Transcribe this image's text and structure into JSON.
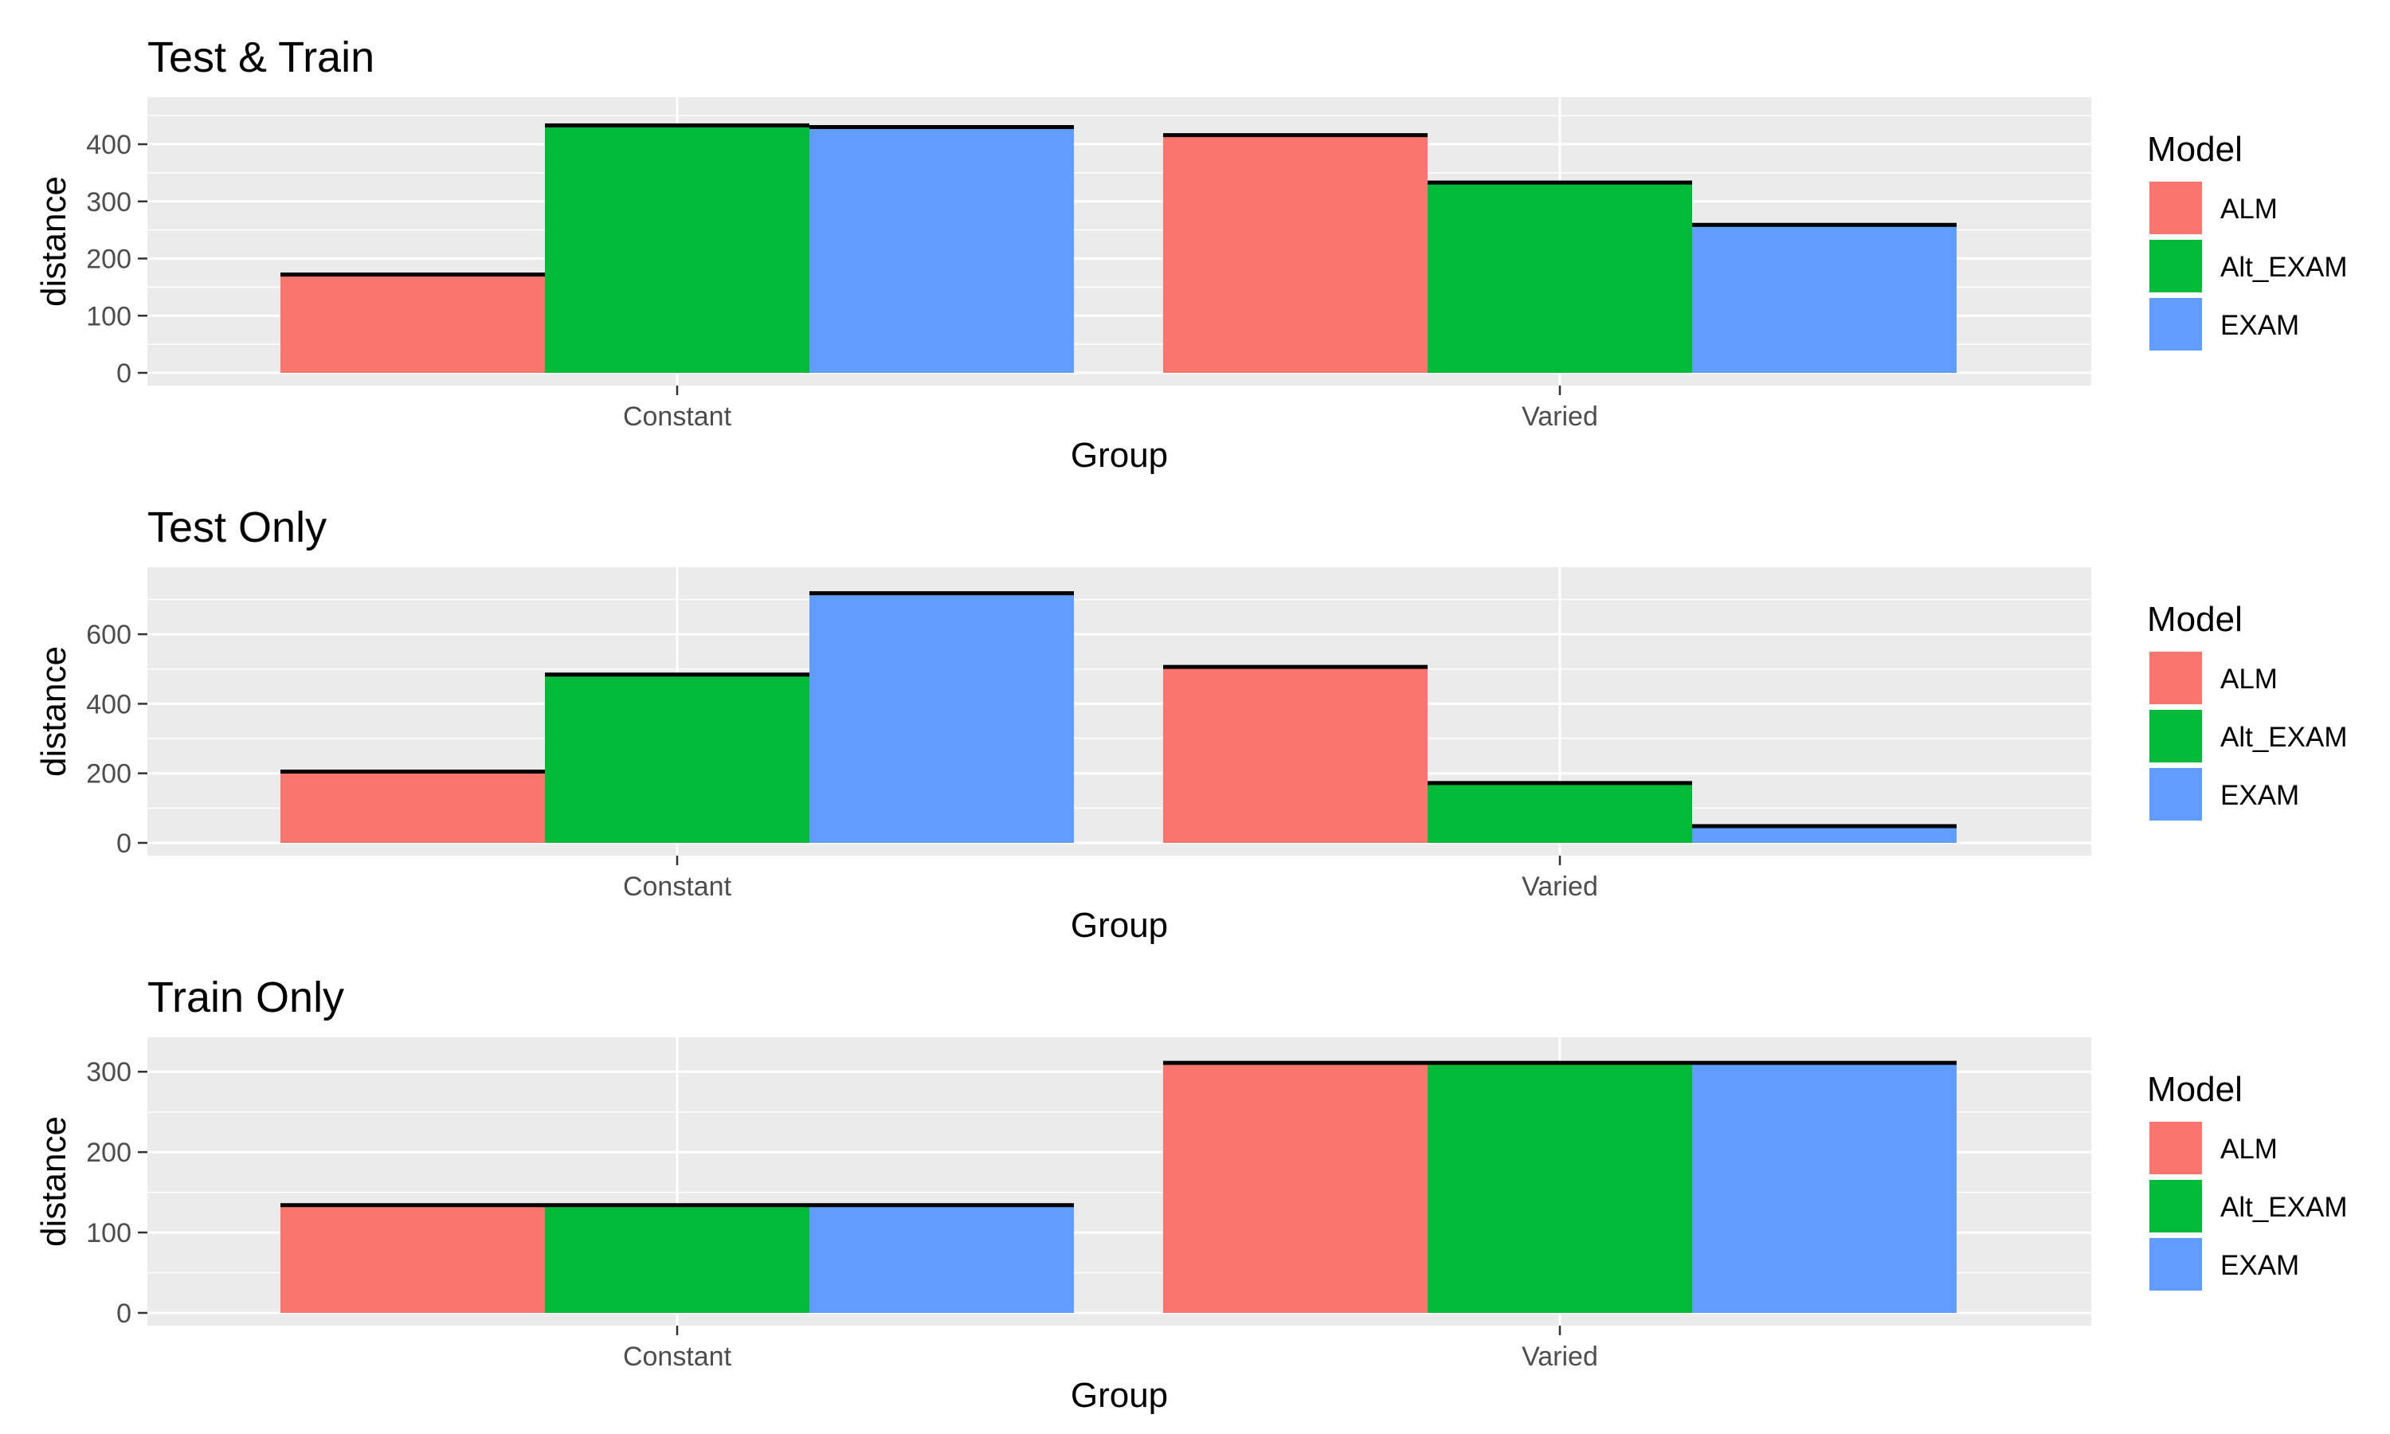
{
  "chart_data": [
    {
      "type": "bar",
      "title": "Test & Train",
      "xlabel": "Group",
      "ylabel": "distance",
      "categories": [
        "Constant",
        "Varied"
      ],
      "series": [
        {
          "name": "ALM",
          "values": [
            172,
            416
          ]
        },
        {
          "name": "Alt_EXAM",
          "values": [
            433,
            333
          ]
        },
        {
          "name": "EXAM",
          "values": [
            430,
            259
          ]
        }
      ],
      "ylim": [
        0,
        460
      ],
      "yticks": [
        0,
        100,
        200,
        300,
        400
      ],
      "grid": true,
      "legend": "right"
    },
    {
      "type": "bar",
      "title": "Test Only",
      "xlabel": "Group",
      "ylabel": "distance",
      "categories": [
        "Constant",
        "Varied"
      ],
      "series": [
        {
          "name": "ALM",
          "values": [
            205,
            506
          ]
        },
        {
          "name": "Alt_EXAM",
          "values": [
            484,
            172
          ]
        },
        {
          "name": "EXAM",
          "values": [
            718,
            48
          ]
        }
      ],
      "ylim": [
        0,
        756
      ],
      "yticks": [
        0,
        200,
        400,
        600
      ],
      "grid": true,
      "legend": "right"
    },
    {
      "type": "bar",
      "title": "Train Only",
      "xlabel": "Group",
      "ylabel": "distance",
      "categories": [
        "Constant",
        "Varied"
      ],
      "series": [
        {
          "name": "ALM",
          "values": [
            134,
            311
          ]
        },
        {
          "name": "Alt_EXAM",
          "values": [
            134,
            311
          ]
        },
        {
          "name": "EXAM",
          "values": [
            134,
            311
          ]
        }
      ],
      "ylim": [
        0,
        327
      ],
      "yticks": [
        0,
        100,
        200,
        300
      ],
      "grid": true,
      "legend": "right"
    }
  ],
  "legend": {
    "title": "Model",
    "items": [
      {
        "label": "ALM",
        "color": "#F8766D"
      },
      {
        "label": "Alt_EXAM",
        "color": "#00BA38"
      },
      {
        "label": "EXAM",
        "color": "#619CFF"
      }
    ]
  },
  "colors": {
    "panel_background": "#EBEBEB",
    "grid": "#FFFFFF",
    "tick_text": "#4D4D4D",
    "error_bar": "#000000"
  }
}
